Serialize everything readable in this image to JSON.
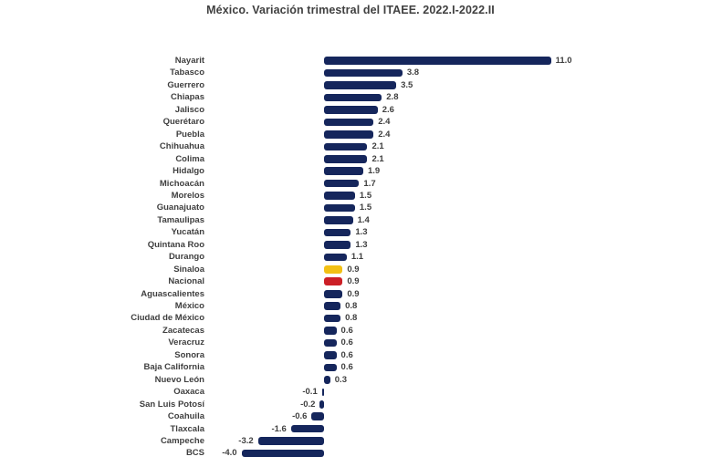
{
  "title": "México. Variación trimestral del ITAEE. 2022.I-2022.II",
  "palette": {
    "default": "#15265c",
    "highlight_yellow": "#f2c014",
    "highlight_red": "#cc1f26",
    "text": "#3f3f3f",
    "background": "#ffffff"
  },
  "chart_data": {
    "type": "bar",
    "orientation": "horizontal",
    "title": "México. Variación trimestral del ITAEE. 2022.I-2022.II",
    "xlabel": "",
    "ylabel": "",
    "xlim": [
      -4.0,
      11.0
    ],
    "grid": false,
    "legend": false,
    "value_labels": "one-decimal, at bar end",
    "categories": [
      "Nayarit",
      "Tabasco",
      "Guerrero",
      "Chiapas",
      "Jalisco",
      "Querétaro",
      "Puebla",
      "Chihuahua",
      "Colima",
      "Hidalgo",
      "Michoacán",
      "Morelos",
      "Guanajuato",
      "Tamaulipas",
      "Yucatán",
      "Quintana Roo",
      "Durango",
      "Sinaloa",
      "Nacional",
      "Aguascalientes",
      "México",
      "Ciudad de México",
      "Zacatecas",
      "Veracruz",
      "Sonora",
      "Baja California",
      "Nuevo León",
      "Oaxaca",
      "San Luis Potosí",
      "Coahuila",
      "Tlaxcala",
      "Campeche",
      "BCS"
    ],
    "series": [
      {
        "name": "Variación trimestral del ITAEE (%)",
        "values": [
          11.0,
          3.8,
          3.5,
          2.8,
          2.6,
          2.4,
          2.4,
          2.1,
          2.1,
          1.9,
          1.7,
          1.5,
          1.5,
          1.4,
          1.3,
          1.3,
          1.1,
          0.9,
          0.9,
          0.9,
          0.8,
          0.8,
          0.6,
          0.6,
          0.6,
          0.6,
          0.3,
          -0.1,
          -0.2,
          -0.6,
          -1.6,
          -3.2,
          -4.0
        ]
      }
    ],
    "highlighted": [
      {
        "category": "Sinaloa",
        "color": "highlight_yellow"
      },
      {
        "category": "Nacional",
        "color": "highlight_red"
      }
    ]
  }
}
